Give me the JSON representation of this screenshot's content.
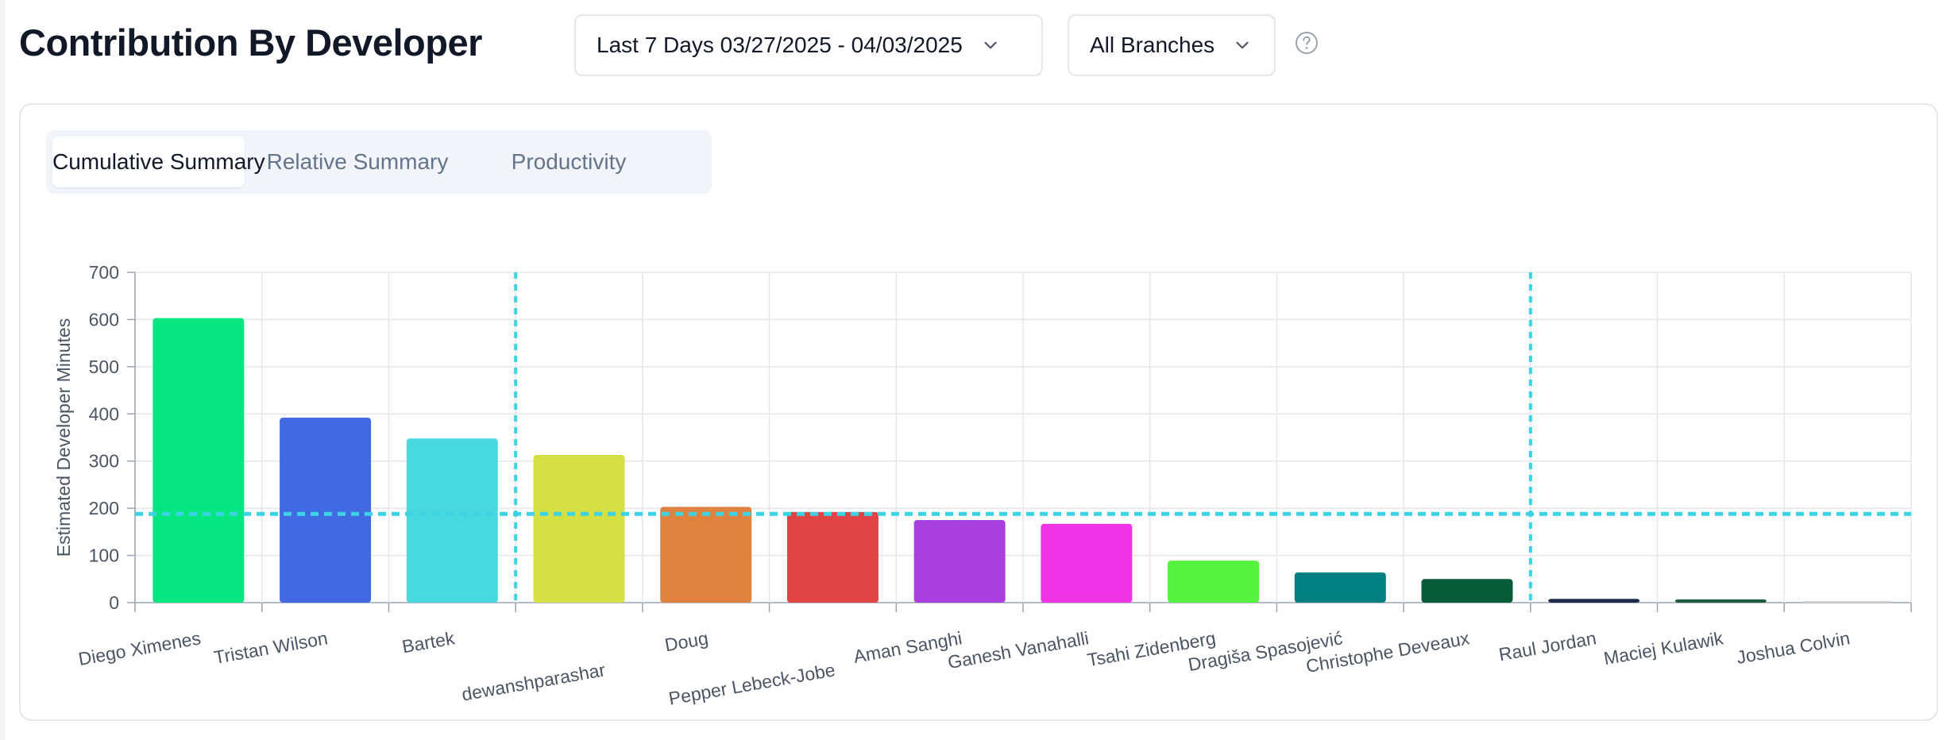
{
  "header": {
    "title": "Contribution By Developer",
    "date_range_label": "Last 7 Days 03/27/2025 - 04/03/2025",
    "branch_label": "All Branches",
    "help_icon": "question-circle-icon",
    "chevron_icon": "chevron-down-icon"
  },
  "tabs": [
    {
      "label": "Cumulative Summary",
      "active": true
    },
    {
      "label": "Relative Summary",
      "active": false
    },
    {
      "label": "Productivity",
      "active": false
    }
  ],
  "chart_data": {
    "type": "bar",
    "title": "",
    "xlabel": "",
    "ylabel": "Estimated Developer Minutes",
    "ylim": [
      0,
      700
    ],
    "yticks": [
      0,
      100,
      200,
      300,
      400,
      500,
      600,
      700
    ],
    "grid": true,
    "categories": [
      "Diego Ximenes",
      "Tristan Wilson",
      "Bartek",
      "dewanshparashar",
      "Doug",
      "Pepper Lebeck-Jobe",
      "Aman Sanghi",
      "Ganesh Vanahalli",
      "Tsahi Zidenberg",
      "Dragiša Spasojević",
      "Christophe Deveaux",
      "Raul Jordan",
      "Maciej Kulawik",
      "Joshua Colvin"
    ],
    "values": [
      603,
      392,
      348,
      313,
      203,
      192,
      175,
      167,
      89,
      64,
      50,
      8,
      7,
      3
    ],
    "colors": [
      "#05e683",
      "#4169e1",
      "#47d8e0",
      "#d4e043",
      "#df8240",
      "#e04444",
      "#a840e0",
      "#ef34e5",
      "#55f23f",
      "#008080",
      "#075b38",
      "#1e2a4a",
      "#1e5a3c",
      "#d4d4d4"
    ],
    "reference_line": {
      "y": 188,
      "style": "dotted",
      "color": "#3cd4e4"
    },
    "reference_vlines": {
      "after_categories": [
        "Bartek",
        "Christophe Deveaux"
      ],
      "style": "dotted",
      "color": "#3cd4e4"
    }
  }
}
